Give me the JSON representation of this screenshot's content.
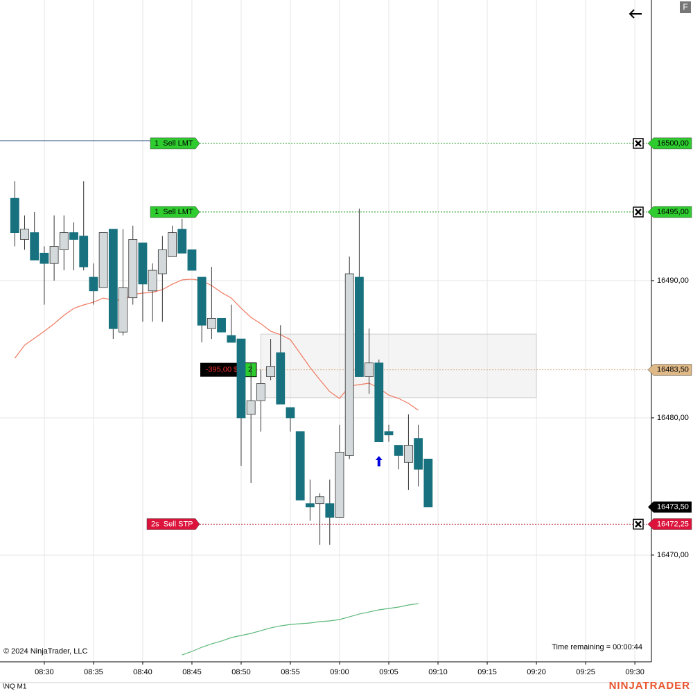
{
  "chart_data": {
    "type": "candlestick",
    "instrument": "\\NQ M1",
    "copyright": "© 2024 NinjaTrader, LLC",
    "status": "Time remaining = 00:00:44",
    "brand": "NINJATRADER",
    "button": "F",
    "x": [
      "08:27",
      "08:28",
      "08:29",
      "08:30",
      "08:31",
      "08:32",
      "08:33",
      "08:34",
      "08:35",
      "08:36",
      "08:37",
      "08:38",
      "08:39",
      "08:40",
      "08:41",
      "08:42",
      "08:43",
      "08:44",
      "08:45",
      "08:46",
      "08:47",
      "08:48",
      "08:49",
      "08:50",
      "08:51",
      "08:52",
      "08:53",
      "08:54",
      "08:55",
      "08:56",
      "08:57",
      "08:58",
      "08:59",
      "09:00",
      "09:01",
      "09:02",
      "09:03",
      "09:04",
      "09:05",
      "09:06",
      "09:07",
      "09:08",
      "09:09"
    ],
    "open": [
      16496,
      16493,
      16493.5,
      16492,
      16491.25,
      16492.25,
      16493.5,
      16493.25,
      16490.25,
      16489.5,
      16493.75,
      16486.25,
      16488.75,
      16492.75,
      16489.25,
      16490.5,
      16491.75,
      16493.75,
      16492.25,
      16490.25,
      16486.5,
      16487.25,
      16486,
      16485.75,
      16480.25,
      16481.25,
      16483,
      16484.75,
      16480.75,
      16479,
      16473.75,
      16473.75,
      16473.75,
      16472.75,
      16477.25,
      16490.25,
      16483,
      16484,
      16479,
      16478,
      16476.75,
      16478.5,
      16477
    ],
    "high": [
      16497.25,
      16494.75,
      16495,
      16492.5,
      16494.75,
      16494.75,
      16494.25,
      16497.25,
      16491.25,
      16493.5,
      16493.75,
      16493.75,
      16494,
      16492.75,
      16491.25,
      16493.25,
      16494,
      16494.5,
      16492.25,
      16490.25,
      16491,
      16487.25,
      16488.25,
      16485.75,
      16484,
      16483.5,
      16485.75,
      16486.75,
      16480.75,
      16479,
      16475.5,
      16474.5,
      16475.5,
      16479.5,
      16491.75,
      16495.25,
      16486.5,
      16484.25,
      16479.5,
      16478,
      16480.25,
      16479.5,
      16477
    ],
    "low": [
      16492.5,
      16492.25,
      16491.5,
      16488.25,
      16490,
      16490.75,
      16490.75,
      16490.75,
      16488.25,
      16489.5,
      16485.75,
      16486,
      16488.25,
      16487,
      16487,
      16487,
      16491.75,
      16492,
      16490.75,
      16485.5,
      16485.75,
      16486.25,
      16485.5,
      16476.5,
      16475.25,
      16479,
      16482.75,
      16481,
      16479,
      16474,
      16472.5,
      16470.75,
      16470.75,
      16472.75,
      16477,
      16483,
      16481.75,
      16478.25,
      16478.25,
      16476.25,
      16474.75,
      16475,
      16473.5
    ],
    "close": [
      16493.5,
      16493.75,
      16491.5,
      16491.25,
      16492.5,
      16493.5,
      16493,
      16491,
      16489.25,
      16493.5,
      16486.5,
      16489.5,
      16493,
      16489.75,
      16490.75,
      16492.25,
      16493.5,
      16492,
      16490.75,
      16486.75,
      16487.25,
      16486.25,
      16485.5,
      16480,
      16481.25,
      16482.5,
      16483.75,
      16481,
      16480,
      16474,
      16473.5,
      16474.25,
      16472.75,
      16477.5,
      16490.5,
      16483,
      16484,
      16478.25,
      16478.75,
      16477.25,
      16478,
      16476.25,
      16473.5
    ],
    "up_color": "#d4dadc",
    "down_color": "#17717e",
    "lines": [
      {
        "color": "#f07860",
        "values": [
          16484.34,
          16485.3,
          16485.8,
          16486.31,
          16486.86,
          16487.47,
          16487.98,
          16488.23,
          16488.43,
          16488.73,
          16488.58,
          16488.58,
          16488.99,
          16489.09,
          16489.14,
          16489.34,
          16489.74,
          16490.05,
          16490.1,
          16490,
          16489.64,
          16489.14,
          16488.73,
          16487.98,
          16487.32,
          16486.86,
          16486.31,
          16486.06,
          16485.7,
          16484.69,
          16483.68,
          16482.77,
          16481.91,
          16481.41,
          16482.32,
          16482.42,
          16482.52,
          16482.17,
          16481.66,
          16481.41,
          16481.06,
          16480.55,
          null
        ]
      },
      {
        "color": "#5cb87a",
        "values": [
          null,
          null,
          null,
          null,
          null,
          null,
          null,
          null,
          null,
          null,
          null,
          null,
          null,
          null,
          null,
          null,
          null,
          16462.72,
          16462.98,
          16463.28,
          16463.53,
          16463.73,
          16463.99,
          16464.14,
          16464.29,
          16464.49,
          16464.69,
          16464.84,
          16464.94,
          16465,
          16465.05,
          16465.15,
          16465.2,
          16465.3,
          16465.5,
          16465.7,
          16465.85,
          16466.01,
          16466.11,
          16466.21,
          16466.36,
          16466.46,
          null
        ]
      }
    ],
    "rectangle": {
      "x": [
        "08:52",
        "09:20"
      ],
      "y": [
        16486.1,
        16481.47
      ]
    },
    "execution": {
      "x": "09:04",
      "price": 16477.22,
      "color": "#0000dd"
    },
    "orders": [
      {
        "label": "1  Sell LMT",
        "color": "#2ecc2e",
        "price": {
          "value": 16500,
          "label": "16500,00"
        }
      },
      {
        "label": "1  Sell LMT",
        "color": "#2ecc2e",
        "price": {
          "value": 16495,
          "label": "16495,00"
        }
      },
      {
        "label": "2s  Sell STP",
        "color": "#dc143c",
        "price": {
          "value": 16472.25,
          "label": "16472,25"
        }
      }
    ],
    "position": {
      "pnl": "-395,00 $",
      "quantity": "2",
      "price": {
        "value": 16483.5,
        "label": "16483,50"
      }
    },
    "last_price": {
      "value": 16473.5,
      "label": "16473,50"
    },
    "xlim": [
      "08:25:30",
      "09:31:41"
    ],
    "xticks": [
      "08:30",
      "08:35",
      "08:40",
      "08:45",
      "08:50",
      "08:55",
      "09:00",
      "09:05",
      "09:10",
      "09:15",
      "09:20",
      "09:25",
      "09:30"
    ],
    "ylim": [
      16462.22,
      16510.45
    ],
    "yticks": [
      {
        "value": 16490,
        "label": "16490,00"
      },
      {
        "value": 16480,
        "label": "16480,00"
      },
      {
        "value": 16470,
        "label": "16470,00"
      }
    ],
    "grid": true
  }
}
